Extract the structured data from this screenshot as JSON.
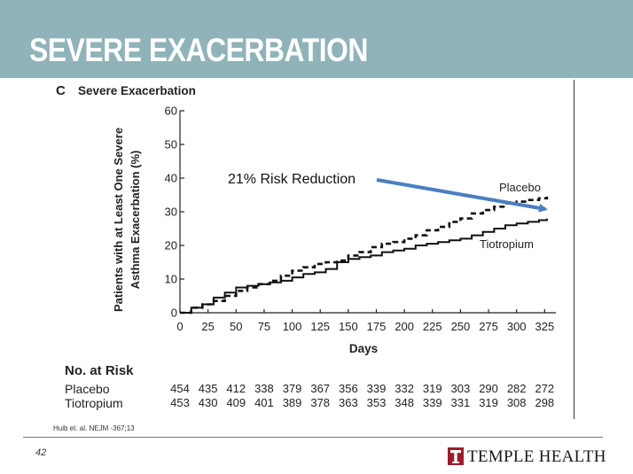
{
  "slide": {
    "title": "SEVERE EXACERBATION",
    "citation": "Huib et. al. NEJM -367;13",
    "page_number": "42",
    "logo_text": "TEMPLE HEALTH",
    "banner_color": "#8fb3b8"
  },
  "figure": {
    "panel_letter": "C",
    "panel_title": "Severe Exacerbation"
  },
  "annotation": {
    "text": "21%  Risk Reduction",
    "arrow_color": "#4a7fc1"
  },
  "chart_data": {
    "type": "line",
    "xlabel": "Days",
    "ylabel_line1": "Patients with at Least One Severe",
    "ylabel_line2": "Asthma Exacerbation (%)",
    "xlim": [
      0,
      335
    ],
    "ylim": [
      0,
      60
    ],
    "xticks": [
      0,
      25,
      50,
      75,
      100,
      125,
      150,
      175,
      200,
      225,
      250,
      275,
      300,
      325
    ],
    "yticks": [
      0,
      10,
      20,
      30,
      40,
      50,
      60
    ],
    "grid": false,
    "series": [
      {
        "name": "Placebo",
        "style": "dashed",
        "color": "#111111",
        "x": [
          0,
          10,
          20,
          30,
          40,
          50,
          60,
          70,
          80,
          90,
          100,
          110,
          120,
          130,
          140,
          150,
          160,
          170,
          180,
          190,
          200,
          210,
          220,
          230,
          240,
          250,
          260,
          270,
          280,
          290,
          300,
          310,
          320,
          327
        ],
        "y": [
          0,
          1.5,
          2.5,
          3.5,
          5,
          6.5,
          7.5,
          8.5,
          9.5,
          11,
          12.5,
          13.5,
          14.5,
          15,
          15.5,
          17,
          18,
          19.5,
          20.5,
          21,
          22,
          23,
          24.5,
          25.5,
          27,
          28,
          29.5,
          30.5,
          31.5,
          32.5,
          33,
          33.5,
          34,
          34.5
        ]
      },
      {
        "name": "Tiotropium",
        "style": "solid",
        "color": "#111111",
        "x": [
          0,
          10,
          20,
          30,
          40,
          50,
          60,
          70,
          80,
          90,
          100,
          110,
          120,
          130,
          140,
          150,
          160,
          170,
          180,
          190,
          200,
          210,
          220,
          230,
          240,
          250,
          260,
          270,
          280,
          290,
          300,
          310,
          320,
          327
        ],
        "y": [
          0,
          1.5,
          2.5,
          4.5,
          6,
          7.5,
          8,
          8.5,
          9,
          9.5,
          10.5,
          11.5,
          12,
          13,
          15,
          16,
          16.5,
          17,
          18,
          18.5,
          19,
          20,
          20.5,
          21,
          21.5,
          22,
          23,
          24,
          25,
          26,
          26.5,
          27,
          27.5,
          28
        ]
      }
    ],
    "series_labels": [
      "Placebo",
      "Tiotropium"
    ]
  },
  "risk_table": {
    "heading": "No. at Risk",
    "rows": [
      {
        "label": "Placebo",
        "values": [
          "454",
          "435",
          "412",
          "338",
          "379",
          "367",
          "356",
          "339",
          "332",
          "319",
          "303",
          "290",
          "282",
          "272"
        ]
      },
      {
        "label": "Tiotropium",
        "values": [
          "453",
          "430",
          "409",
          "401",
          "389",
          "378",
          "363",
          "353",
          "348",
          "339",
          "331",
          "319",
          "308",
          "298"
        ]
      }
    ]
  }
}
